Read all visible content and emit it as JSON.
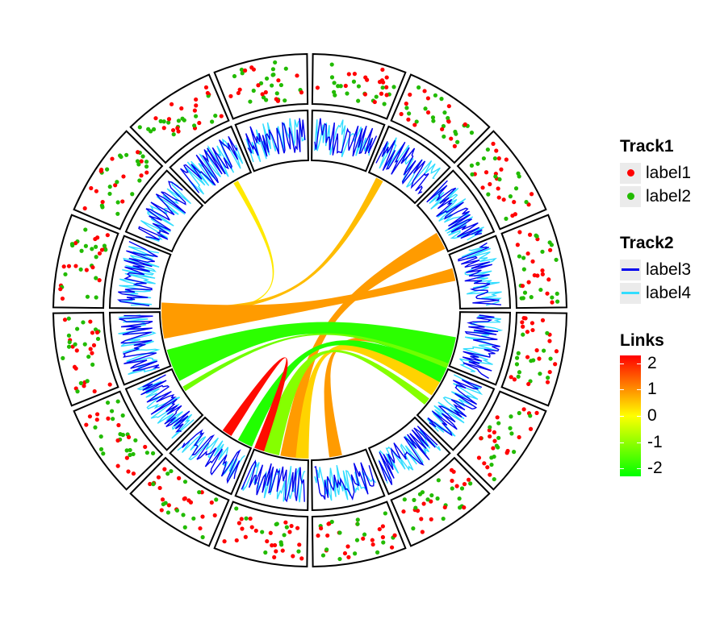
{
  "chart_data": {
    "type": "circos",
    "sectors": 16,
    "tracks": [
      {
        "name": "Track1",
        "kind": "scatter",
        "series": [
          {
            "name": "label1",
            "color": "#ff0000"
          },
          {
            "name": "label2",
            "color": "#22bb00"
          }
        ]
      },
      {
        "name": "Track2",
        "kind": "line",
        "series": [
          {
            "name": "label3",
            "color": "#0000ee"
          },
          {
            "name": "label4",
            "color": "#33ddff"
          }
        ]
      }
    ],
    "links": {
      "title": "Links",
      "scale": {
        "min": -2.3,
        "max": 2.3,
        "ticks": [
          2,
          1,
          0,
          -1,
          -2
        ],
        "tick_labels": [
          "2",
          "1",
          "0",
          "-1",
          "-2"
        ],
        "colors": [
          "#00ff00",
          "#ffff00",
          "#ff0000"
        ]
      },
      "items": [
        {
          "from": 330,
          "to": 268,
          "width1": 2,
          "width2": 2,
          "value": 0.2
        },
        {
          "from": 28,
          "to": 270,
          "width1": 3,
          "width2": 3,
          "value": 0.6
        },
        {
          "from": 76,
          "to": 266,
          "width1": 5,
          "width2": 14,
          "value": 0.9
        },
        {
          "from": 62,
          "to": 188,
          "width1": 7,
          "width2": 7,
          "value": 0.9
        },
        {
          "from": 110,
          "to": 170,
          "width1": 5,
          "width2": 5,
          "value": 0.9
        },
        {
          "from": 120,
          "to": 183,
          "width1": 10,
          "width2": 5,
          "value": 0.4
        },
        {
          "from": 107,
          "to": 248,
          "width1": 13,
          "width2": 13,
          "value": -1.9
        },
        {
          "from": 112,
          "to": 238,
          "width1": 2,
          "width2": 2,
          "value": -1.3
        },
        {
          "from": 116,
          "to": 206,
          "width1": 6,
          "width2": 6,
          "value": -2.0
        },
        {
          "from": 128,
          "to": 196,
          "width1": 3,
          "width2": 8,
          "value": -1.1
        },
        {
          "from": 214,
          "to": 200,
          "width1": 4,
          "width2": 4,
          "value": 2.2
        }
      ]
    }
  }
}
